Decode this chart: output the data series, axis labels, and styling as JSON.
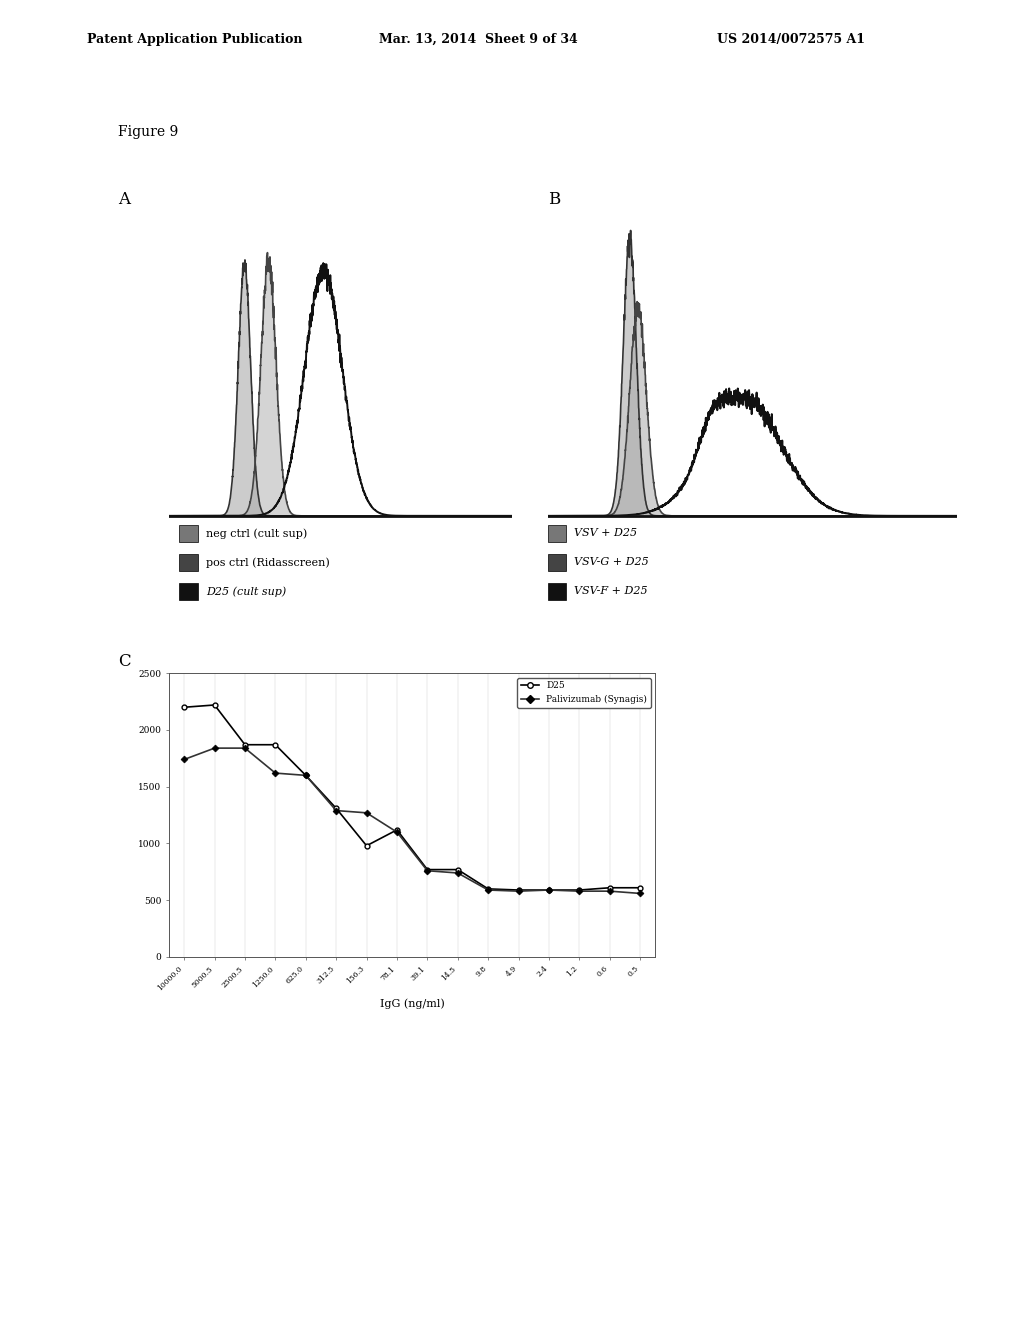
{
  "header_left": "Patent Application Publication",
  "header_mid": "Mar. 13, 2014  Sheet 9 of 34",
  "header_right": "US 2014/0072575 A1",
  "figure_label": "Figure 9",
  "panel_A_label": "A",
  "panel_B_label": "B",
  "panel_C_label": "C",
  "legend_A": [
    {
      "label": "neg ctrl (cult sup)",
      "color": "#777777"
    },
    {
      "label": "pos ctrl (Ridasscreen)",
      "color": "#444444"
    },
    {
      "label": "D25 (cult sup)",
      "color": "#111111"
    }
  ],
  "legend_B": [
    {
      "label": "VSV + D25",
      "color": "#777777"
    },
    {
      "label": "VSV-G + D25",
      "color": "#444444"
    },
    {
      "label": "VSV-F + D25",
      "color": "#111111"
    }
  ],
  "line_C": {
    "x_labels": [
      "10000.0",
      "5000.5",
      "2500.5",
      "1250.0",
      "625.0",
      "312.5",
      "156.3",
      "78.1",
      "39.1",
      "14.5",
      "9.8",
      "4.9",
      "2.4",
      "1.2",
      "0.6",
      "0.5"
    ],
    "D25": [
      2200,
      2220,
      1870,
      1870,
      1600,
      1310,
      980,
      1120,
      770,
      770,
      600,
      590,
      590,
      590,
      610,
      610
    ],
    "Palivizumab": [
      1740,
      1840,
      1840,
      1620,
      1600,
      1290,
      1270,
      1100,
      760,
      740,
      590,
      580,
      590,
      580,
      580,
      560
    ],
    "xlabel": "IgG (ng/ml)",
    "ylim": [
      0,
      2500
    ],
    "yticks": [
      0,
      500,
      1000,
      1500,
      2000,
      2500
    ]
  },
  "bg_color": "#ffffff"
}
